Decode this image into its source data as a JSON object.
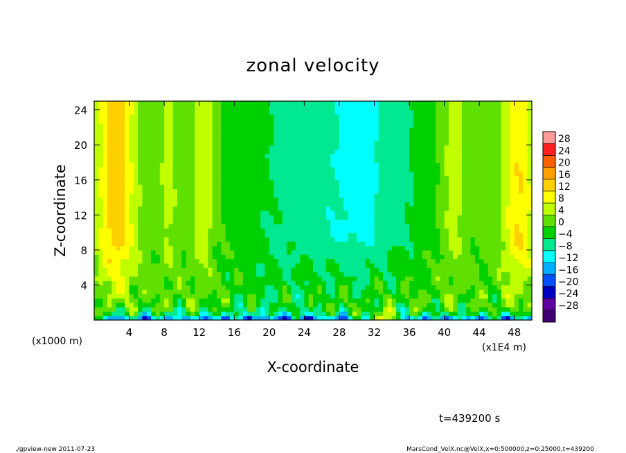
{
  "chart_data": {
    "type": "heatmap",
    "title": "zonal velocity",
    "xlabel": "X-coordinate",
    "ylabel": "Z-coordinate",
    "x_unit_left": "(x1000 m)",
    "x_unit_right": "(x1E4 m)",
    "xlim": [
      0,
      50
    ],
    "ylim": [
      0,
      25
    ],
    "x_ticks": [
      4,
      8,
      12,
      16,
      20,
      24,
      28,
      32,
      36,
      40,
      44,
      48
    ],
    "y_ticks": [
      4,
      8,
      12,
      16,
      20,
      24
    ],
    "colorbar": {
      "levels": [
        28,
        24,
        20,
        16,
        12,
        8,
        4,
        0,
        -4,
        -8,
        -12,
        -16,
        -20,
        -24,
        -28
      ],
      "level_labels": [
        "28",
        "24",
        "20",
        "16",
        "12",
        "8",
        "4",
        "0",
        "−4",
        "−8",
        "−12",
        "−16",
        "−20",
        "−24",
        "−28"
      ],
      "colors": [
        "#ff9a9a",
        "#ff2020",
        "#ff6000",
        "#ffa000",
        "#ffd000",
        "#ffff00",
        "#c0ff00",
        "#60e000",
        "#00d000",
        "#00e890",
        "#00ffff",
        "#00b0ff",
        "#0050ff",
        "#0000c0",
        "#6000a0",
        "#400070"
      ]
    },
    "field_description": "warm (+8..+16) near left and right edges at upper levels; green (0..+4) bands mid-domain; cyan (-8..-12) around x=26-36 upper levels; blue (-16..-24) thin layer near z=0-1; alternating streaks at low levels",
    "time_label": "t=439200 s"
  },
  "footer": {
    "left": "./gpview-new  2011-07-23",
    "right": "MarsCond_VelX.nc@VelX,x=0:500000,z=0:25000,t=439200"
  }
}
